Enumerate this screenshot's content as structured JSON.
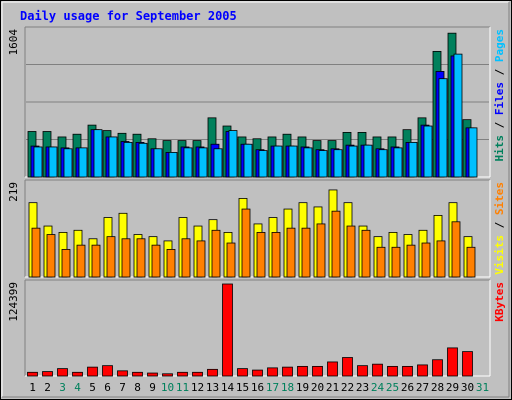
{
  "chart_data": {
    "type": "bar",
    "title": "Daily usage for September 2005",
    "colors": {
      "background": "#c0c0c0",
      "plot": "#c0c0c0",
      "grid": "#808080",
      "hits": "#00805c",
      "files": "#0000ff",
      "pages": "#00c0ff",
      "visits": "#ffff00",
      "sites": "#ff8000",
      "kbytes": "#ff0000",
      "title": "#0000ff",
      "weekend_label": "#00805c",
      "weekday_label": "#000000"
    },
    "x": [
      "1",
      "2",
      "3",
      "4",
      "5",
      "6",
      "7",
      "8",
      "9",
      "10",
      "11",
      "12",
      "13",
      "14",
      "15",
      "16",
      "17",
      "18",
      "19",
      "20",
      "21",
      "22",
      "23",
      "24",
      "25",
      "26",
      "27",
      "28",
      "29",
      "30",
      "31"
    ],
    "weekend_days": [
      3,
      4,
      10,
      11,
      17,
      18,
      24,
      25,
      31
    ],
    "panels": [
      {
        "name": "hits-files-pages",
        "max_label": "1604",
        "ymax": 1604,
        "legend": [
          {
            "text": "Hits",
            "color": "#00805c"
          },
          {
            "text": " / ",
            "color": "#000000"
          },
          {
            "text": "Files",
            "color": "#0000ff"
          },
          {
            "text": " / ",
            "color": "#000000"
          },
          {
            "text": "Pages",
            "color": "#00c0ff"
          }
        ],
        "series": [
          {
            "name": "Hits",
            "color": "#00805c",
            "values": [
              500,
              500,
              440,
              470,
              570,
              510,
              480,
              470,
              420,
              400,
              400,
              400,
              650,
              560,
              440,
              420,
              440,
              470,
              440,
              400,
              400,
              490,
              490,
              440,
              440,
              520,
              650,
              1380,
              1580,
              630,
              0
            ]
          },
          {
            "name": "Files",
            "color": "#0000ff",
            "values": [
              340,
              330,
              320,
              320,
              520,
              440,
              390,
              380,
              310,
              270,
              330,
              330,
              360,
              500,
              360,
              300,
              340,
              340,
              330,
              300,
              310,
              350,
              350,
              310,
              330,
              380,
              570,
              1160,
              1330,
              540,
              0
            ]
          },
          {
            "name": "Pages",
            "color": "#00c0ff",
            "values": [
              330,
              330,
              310,
              320,
              520,
              440,
              380,
              370,
              310,
              270,
              320,
              320,
              310,
              510,
              360,
              290,
              340,
              340,
              320,
              290,
              300,
              340,
              350,
              300,
              320,
              380,
              560,
              1080,
              1350,
              540,
              0
            ]
          }
        ]
      },
      {
        "name": "visits-sites",
        "max_label": "219",
        "ymax": 219,
        "legend": [
          {
            "text": "Visits",
            "color": "#ffff00"
          },
          {
            "text": " / ",
            "color": "#000000"
          },
          {
            "text": "Sites",
            "color": "#ff8000"
          }
        ],
        "series": [
          {
            "name": "Visits",
            "color": "#ffff00",
            "values": [
              175,
              120,
              105,
              110,
              90,
              140,
              150,
              100,
              95,
              85,
              140,
              120,
              135,
              105,
              185,
              125,
              140,
              160,
              175,
              165,
              205,
              175,
              120,
              95,
              105,
              100,
              110,
              145,
              175,
              95,
              0
            ]
          },
          {
            "name": "Sites",
            "color": "#ff8000",
            "values": [
              115,
              100,
              65,
              75,
              75,
              95,
              90,
              90,
              75,
              65,
              90,
              85,
              110,
              80,
              160,
              105,
              105,
              115,
              115,
              125,
              155,
              120,
              110,
              70,
              70,
              75,
              80,
              85,
              130,
              70,
              0
            ]
          }
        ]
      },
      {
        "name": "kbytes",
        "max_label": "124399",
        "ymax": 124399,
        "legend": [
          {
            "text": "KBytes",
            "color": "#ff0000"
          }
        ],
        "series": [
          {
            "name": "KBytes",
            "color": "#ff0000",
            "values": [
              5000,
              6000,
              10000,
              5000,
              12000,
              14000,
              7000,
              5000,
              4000,
              3000,
              5000,
              5000,
              9000,
              124399,
              10000,
              8000,
              11000,
              12000,
              13000,
              13000,
              19000,
              25000,
              14000,
              16000,
              13000,
              13000,
              15000,
              22000,
              38000,
              33000,
              0
            ]
          }
        ]
      }
    ]
  }
}
